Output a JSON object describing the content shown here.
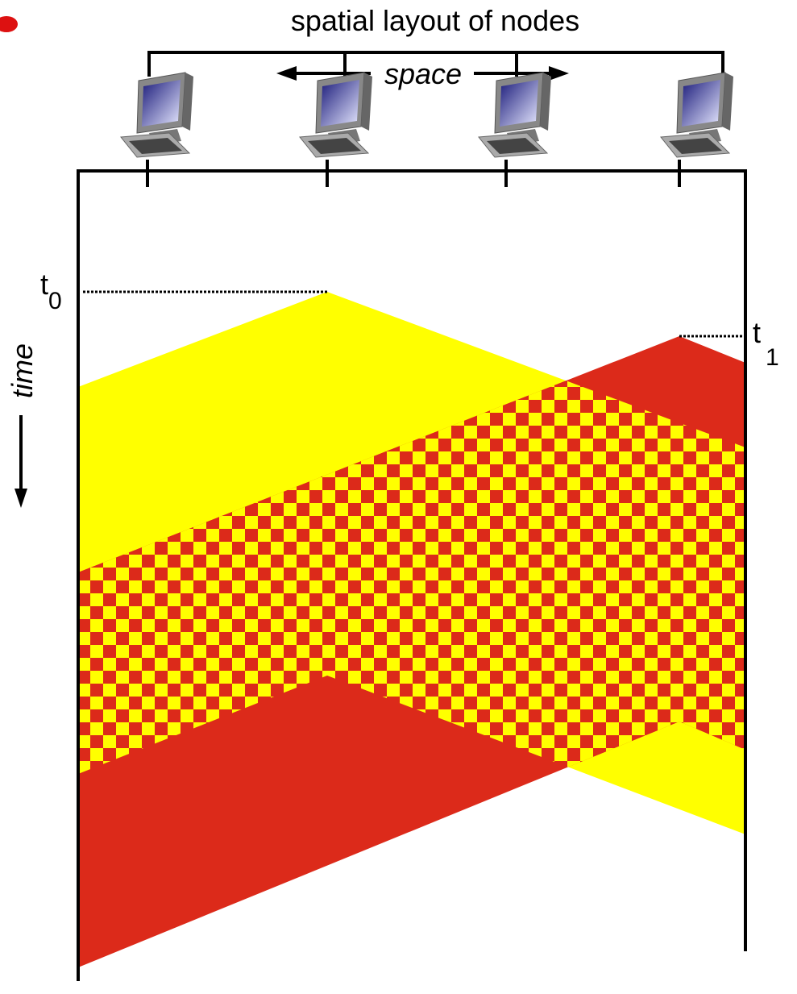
{
  "title": "spatial layout of nodes",
  "space_label": "space",
  "time_label": "time",
  "t0": {
    "base": "t",
    "sub": "0"
  },
  "t1": {
    "base": "t",
    "sub": "1"
  }
}
